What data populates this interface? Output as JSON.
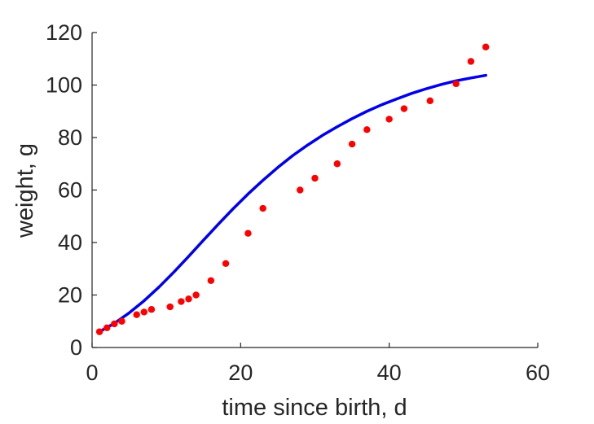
{
  "chart_data": {
    "type": "scatter",
    "xlabel": "time since birth, d",
    "ylabel": "weight, g",
    "xlim": [
      0,
      60
    ],
    "ylim": [
      0,
      120
    ],
    "xticks": [
      0,
      20,
      40,
      60
    ],
    "yticks": [
      0,
      20,
      40,
      60,
      80,
      100,
      120
    ],
    "grid": false,
    "legend": "none",
    "colors": {
      "points": "#ff0000",
      "line": "#0000ee",
      "axis": "#262626"
    },
    "series": [
      {
        "kind": "scatter",
        "x": [
          1,
          2,
          3,
          4,
          6,
          7,
          8,
          10.5,
          12,
          13,
          14,
          16,
          18,
          21,
          23,
          28,
          30,
          33,
          35,
          37,
          40,
          42,
          45.5,
          49,
          51,
          53
        ],
        "y": [
          6,
          7.5,
          9,
          10,
          12.5,
          13.5,
          14.5,
          15.5,
          17.5,
          18.5,
          20,
          25.5,
          32,
          43.5,
          53,
          60,
          64.5,
          70,
          77.5,
          83,
          87,
          91,
          94,
          100.5,
          109,
          114.5
        ]
      },
      {
        "kind": "line",
        "x": [
          1,
          3,
          5,
          7,
          9,
          11,
          13,
          15,
          17,
          19,
          21,
          23,
          25,
          27,
          29,
          31,
          33,
          35,
          37,
          39,
          41,
          43,
          45,
          47,
          49,
          51,
          53
        ],
        "y": [
          6,
          9.2,
          13.2,
          17.8,
          23,
          28.7,
          34.7,
          40.9,
          47,
          52.9,
          58.5,
          63.7,
          68.6,
          73.1,
          77.1,
          80.8,
          84.1,
          87.2,
          90,
          92.5,
          94.7,
          96.8,
          98.6,
          100.2,
          101.6,
          102.7,
          103.7
        ]
      }
    ]
  }
}
